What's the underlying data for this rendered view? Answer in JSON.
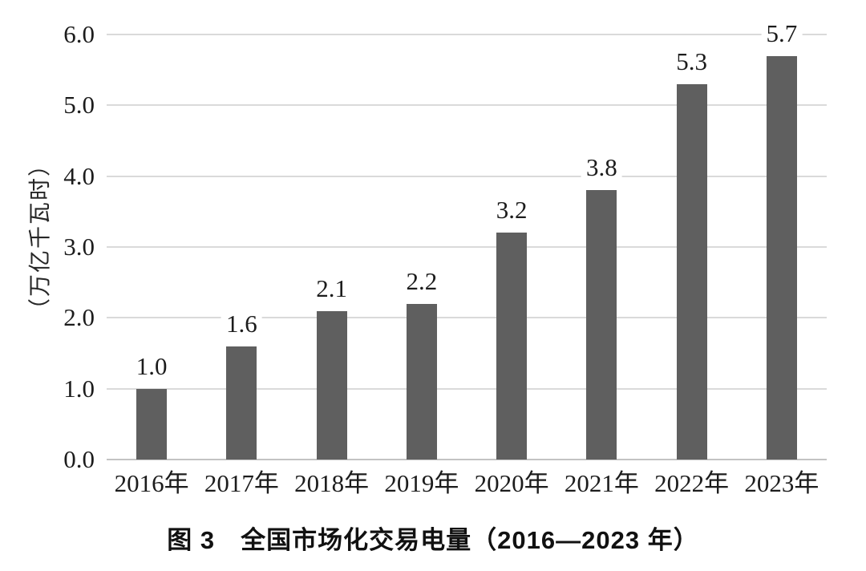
{
  "chart_data": {
    "type": "bar",
    "caption": "图 3　全国市场化交易电量（2016—2023 年）",
    "ylabel": "（万亿千瓦时）",
    "categories": [
      "2016年",
      "2017年",
      "2018年",
      "2019年",
      "2020年",
      "2021年",
      "2022年",
      "2023年"
    ],
    "values": [
      1.0,
      1.6,
      2.1,
      2.2,
      3.2,
      3.8,
      5.3,
      5.7
    ],
    "data_labels": [
      "1.0",
      "1.6",
      "2.1",
      "2.2",
      "3.2",
      "3.8",
      "5.3",
      "5.7"
    ],
    "y_ticks": [
      "6.0",
      "5.0",
      "4.0",
      "3.0",
      "2.0",
      "1.0",
      "0.0"
    ],
    "ylim": [
      0,
      6
    ],
    "grid": true,
    "legend": "none",
    "bar_color": "#5f5f5f",
    "gridline_color": "#dadada",
    "axis_line_color": "#c3c3c3",
    "text_color": "#1c1c1c"
  }
}
